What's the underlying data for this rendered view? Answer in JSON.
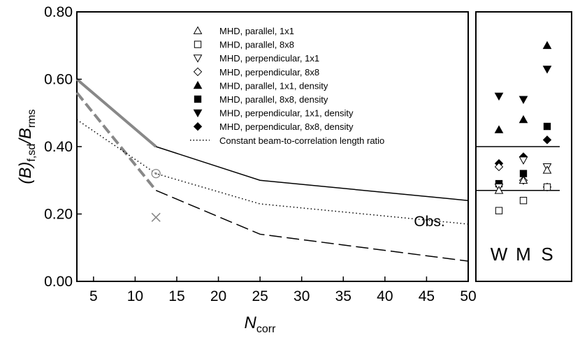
{
  "chart_data": [
    {
      "type": "line",
      "xlabel": "N",
      "xlabel_sub": "corr",
      "ylabel": "(B)",
      "ylabel_sub": "f,sd",
      "ylabel_tail": "/B",
      "ylabel_tail_sub": "rms",
      "xlim": [
        3,
        50
      ],
      "ylim": [
        0,
        0.8
      ],
      "xticks": [
        5,
        10,
        15,
        20,
        25,
        30,
        35,
        40,
        45,
        50
      ],
      "yticks": [
        0,
        0.2,
        0.4,
        0.6,
        0.8
      ],
      "ytick_labels": [
        "0.00",
        "0.20",
        "0.40",
        "0.60",
        "0.80"
      ],
      "series": [
        {
          "name": "upper-solid-gray",
          "style": "solid",
          "color": "#888888",
          "points": [
            [
              3,
              0.6
            ],
            [
              12.5,
              0.4
            ]
          ]
        },
        {
          "name": "upper-solid-black",
          "style": "solid",
          "color": "#000000",
          "points": [
            [
              12.5,
              0.4
            ],
            [
              25,
              0.3
            ],
            [
              50,
              0.24
            ]
          ]
        },
        {
          "name": "lower-dashed-gray",
          "style": "dashed",
          "color": "#888888",
          "points": [
            [
              3,
              0.56
            ],
            [
              12.5,
              0.27
            ]
          ]
        },
        {
          "name": "lower-dashed-black",
          "style": "dashed",
          "color": "#000000",
          "points": [
            [
              12.5,
              0.27
            ],
            [
              25,
              0.14
            ],
            [
              50,
              0.06
            ]
          ]
        },
        {
          "name": "Constant beam-to-correlation length ratio",
          "style": "dotted",
          "color": "#000000",
          "points": [
            [
              3,
              0.48
            ],
            [
              12.5,
              0.32
            ],
            [
              25,
              0.23
            ],
            [
              50,
              0.17
            ]
          ]
        }
      ],
      "markers": [
        {
          "name": "circled-dot",
          "x": 12.5,
          "y": 0.32,
          "color": "#888888"
        },
        {
          "name": "cross",
          "x": 12.5,
          "y": 0.19,
          "color": "#888888"
        }
      ],
      "annotations": [
        {
          "text": "Obs.",
          "x": 46,
          "y": 0.18
        }
      ],
      "legend": [
        {
          "label": "MHD, parallel, 1x1",
          "marker": "triangle-up",
          "filled": false
        },
        {
          "label": "MHD, parallel, 8x8",
          "marker": "square",
          "filled": false
        },
        {
          "label": "MHD, perpendicular, 1x1",
          "marker": "triangle-down",
          "filled": false
        },
        {
          "label": "MHD, perpendicular, 8x8",
          "marker": "diamond",
          "filled": false
        },
        {
          "label": "MHD, parallel, 1x1, density",
          "marker": "triangle-up",
          "filled": true
        },
        {
          "label": "MHD, parallel, 8x8, density",
          "marker": "square",
          "filled": true
        },
        {
          "label": "MHD, perpendicular, 1x1, density",
          "marker": "triangle-down",
          "filled": true
        },
        {
          "label": "MHD, perpendicular, 8x8, density",
          "marker": "diamond",
          "filled": true
        },
        {
          "label": "Constant beam-to-correlation length ratio",
          "marker": "dotted-line",
          "filled": false
        }
      ]
    },
    {
      "type": "scatter",
      "categories": [
        "W",
        "M",
        "S"
      ],
      "ylim": [
        0,
        0.8
      ],
      "hlines": [
        0.4,
        0.27
      ],
      "points": [
        {
          "cat": "W",
          "marker": "triangle-down",
          "filled": true,
          "y": 0.55
        },
        {
          "cat": "W",
          "marker": "triangle-up",
          "filled": true,
          "y": 0.45
        },
        {
          "cat": "W",
          "marker": "diamond",
          "filled": true,
          "y": 0.35
        },
        {
          "cat": "W",
          "marker": "diamond",
          "filled": false,
          "y": 0.34
        },
        {
          "cat": "W",
          "marker": "square",
          "filled": true,
          "y": 0.29
        },
        {
          "cat": "W",
          "marker": "triangle-down",
          "filled": false,
          "y": 0.28
        },
        {
          "cat": "W",
          "marker": "triangle-up",
          "filled": false,
          "y": 0.27
        },
        {
          "cat": "W",
          "marker": "square",
          "filled": false,
          "y": 0.21
        },
        {
          "cat": "M",
          "marker": "triangle-down",
          "filled": true,
          "y": 0.54
        },
        {
          "cat": "M",
          "marker": "triangle-up",
          "filled": true,
          "y": 0.48
        },
        {
          "cat": "M",
          "marker": "diamond",
          "filled": true,
          "y": 0.37
        },
        {
          "cat": "M",
          "marker": "triangle-down",
          "filled": false,
          "y": 0.36
        },
        {
          "cat": "M",
          "marker": "square",
          "filled": true,
          "y": 0.32
        },
        {
          "cat": "M",
          "marker": "diamond",
          "filled": false,
          "y": 0.3
        },
        {
          "cat": "M",
          "marker": "triangle-up",
          "filled": false,
          "y": 0.3
        },
        {
          "cat": "M",
          "marker": "square",
          "filled": false,
          "y": 0.24
        },
        {
          "cat": "S",
          "marker": "triangle-up",
          "filled": true,
          "y": 0.7
        },
        {
          "cat": "S",
          "marker": "triangle-down",
          "filled": true,
          "y": 0.63
        },
        {
          "cat": "S",
          "marker": "square",
          "filled": true,
          "y": 0.46
        },
        {
          "cat": "S",
          "marker": "diamond",
          "filled": true,
          "y": 0.42
        },
        {
          "cat": "S",
          "marker": "triangle-down",
          "filled": false,
          "y": 0.34
        },
        {
          "cat": "S",
          "marker": "triangle-up",
          "filled": false,
          "y": 0.33
        },
        {
          "cat": "S",
          "marker": "diamond",
          "filled": false,
          "y": 0.28
        },
        {
          "cat": "S",
          "marker": "square",
          "filled": false,
          "y": 0.28
        }
      ]
    }
  ]
}
